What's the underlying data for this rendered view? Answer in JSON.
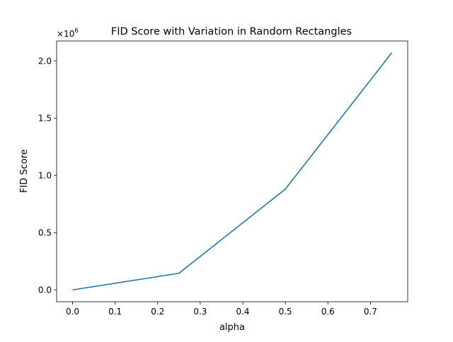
{
  "chart_data": {
    "type": "line",
    "title": "FID Score with Variation in Random Rectangles",
    "xlabel": "alpha",
    "ylabel": "FID Score",
    "y_multiplier_label": "×10",
    "y_multiplier_exponent": "6",
    "xlim": [
      -0.0375,
      0.7875
    ],
    "ylim": [
      -0.1035,
      2.1735
    ],
    "x_ticks": [
      0.0,
      0.1,
      0.2,
      0.3,
      0.4,
      0.5,
      0.6,
      0.7
    ],
    "x_tick_labels": [
      "0.0",
      "0.1",
      "0.2",
      "0.3",
      "0.4",
      "0.5",
      "0.6",
      "0.7"
    ],
    "y_ticks": [
      0.0,
      0.5,
      1.0,
      1.5,
      2.0
    ],
    "y_tick_labels": [
      "0.0",
      "0.5",
      "1.0",
      "1.5",
      "2.0"
    ],
    "grid": false,
    "series": [
      {
        "color": "#1f77b4",
        "x": [
          0.0,
          0.25,
          0.5,
          0.75
        ],
        "y": [
          0.0,
          0.145,
          0.88,
          2.07
        ]
      }
    ]
  }
}
